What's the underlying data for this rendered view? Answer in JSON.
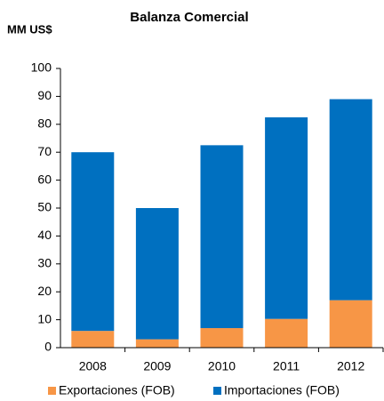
{
  "chart_data": {
    "type": "stacked_bar",
    "title": "Balanza Comercial",
    "y_label": "MM US$",
    "categories": [
      "2008",
      "2009",
      "2010",
      "2011",
      "2012"
    ],
    "series": [
      {
        "name": "Exportaciones (FOB)",
        "color": "#f79646",
        "values": [
          6,
          3,
          7,
          10.3,
          17
        ]
      },
      {
        "name": "Importaciones (FOB)",
        "color": "#0070c0",
        "values": [
          64,
          47,
          65.5,
          72.2,
          72
        ]
      }
    ],
    "ylim": [
      0,
      100
    ],
    "yticks": [
      0,
      10,
      20,
      30,
      40,
      50,
      60,
      70,
      80,
      90,
      100
    ],
    "grid": false
  }
}
